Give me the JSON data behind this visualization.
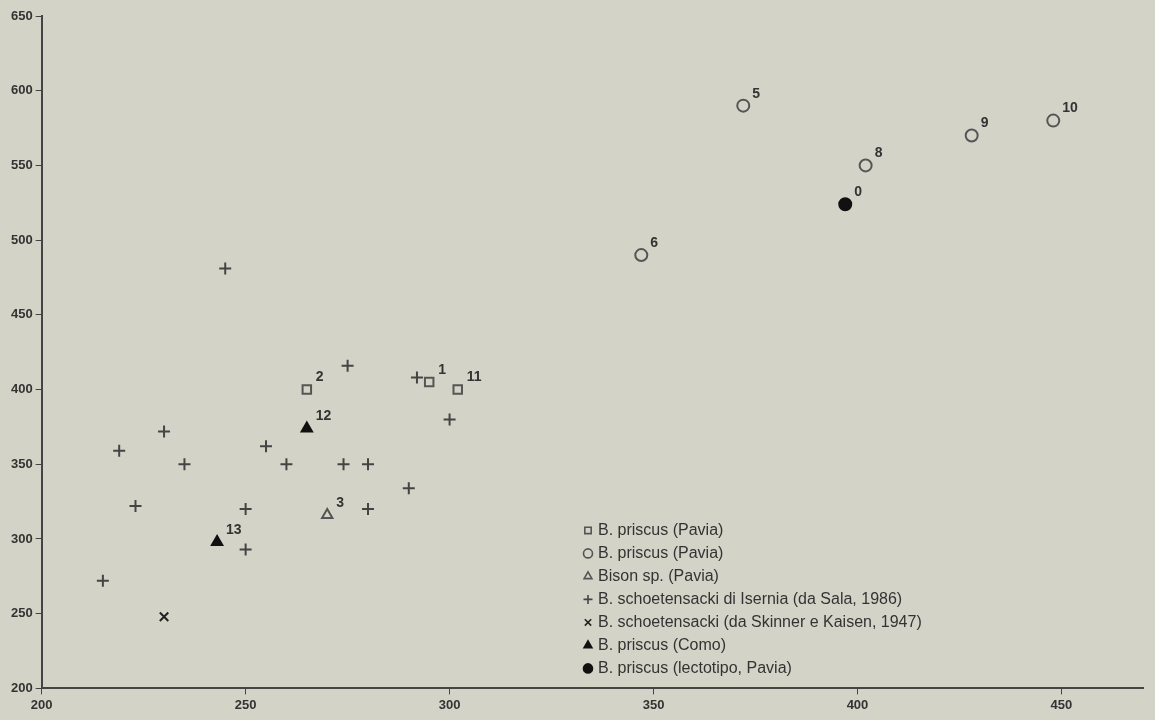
{
  "chart_data": {
    "type": "scatter",
    "xlim": [
      200,
      470
    ],
    "xticks": [
      200,
      250,
      300,
      350,
      400,
      450
    ],
    "ylim": [
      200,
      650
    ],
    "yticks": [
      200,
      250,
      300,
      350,
      400,
      450,
      500,
      550,
      600,
      650
    ],
    "grid": false,
    "legend": "bottom right",
    "series": [
      {
        "name": "B. priscus (Pavia)",
        "color": "#555555",
        "marker": "square",
        "x": [
          265,
          295,
          302
        ],
        "values": [
          400,
          405,
          400
        ]
      },
      {
        "name": "B. priscus (Pavia)",
        "color": "#555555",
        "marker": "circle",
        "x": [
          372,
          347,
          402,
          428,
          448
        ],
        "values": [
          590,
          490,
          550,
          570,
          580
        ]
      },
      {
        "name": "Bison sp. (Pavia)",
        "color": "#555555",
        "marker": "triangle",
        "x": [
          270
        ],
        "values": [
          316
        ]
      },
      {
        "name": "B. schoetensacki di Isernia (da Sala, 1986)",
        "color": "#444444",
        "marker": "plus",
        "x": [
          245,
          219,
          230,
          235,
          223,
          215,
          255,
          250,
          250,
          260,
          275,
          274,
          280,
          280,
          290,
          292,
          300
        ],
        "values": [
          481,
          359,
          372,
          350,
          322,
          272,
          362,
          320,
          293,
          350,
          416,
          350,
          350,
          320,
          334,
          408,
          380
        ]
      },
      {
        "name": "B. schoetensacki (da Skinner e Kaisen, 1947)",
        "color": "#222222",
        "marker": "cross",
        "x": [
          230
        ],
        "values": [
          248
        ]
      },
      {
        "name": "B. priscus (Como)",
        "color": "#111111",
        "marker": "triangle",
        "x": [
          265,
          243
        ],
        "values": [
          374,
          298
        ]
      },
      {
        "name": "B. priscus (lectotipo, Pavia)",
        "color": "#111111",
        "marker": "circle",
        "x": [
          397
        ],
        "values": [
          524
        ]
      }
    ],
    "annotations": [
      {
        "text": "0",
        "x": 397,
        "y": 524
      },
      {
        "text": "1",
        "x": 295,
        "y": 405
      },
      {
        "text": "2",
        "x": 265,
        "y": 400
      },
      {
        "text": "3",
        "x": 270,
        "y": 316
      },
      {
        "text": "5",
        "x": 372,
        "y": 590
      },
      {
        "text": "6",
        "x": 347,
        "y": 490
      },
      {
        "text": "8",
        "x": 402,
        "y": 550
      },
      {
        "text": "9",
        "x": 428,
        "y": 570
      },
      {
        "text": "10",
        "x": 448,
        "y": 580
      },
      {
        "text": "11",
        "x": 302,
        "y": 400
      },
      {
        "text": "12",
        "x": 265,
        "y": 374
      },
      {
        "text": "13",
        "x": 243,
        "y": 298
      }
    ]
  }
}
